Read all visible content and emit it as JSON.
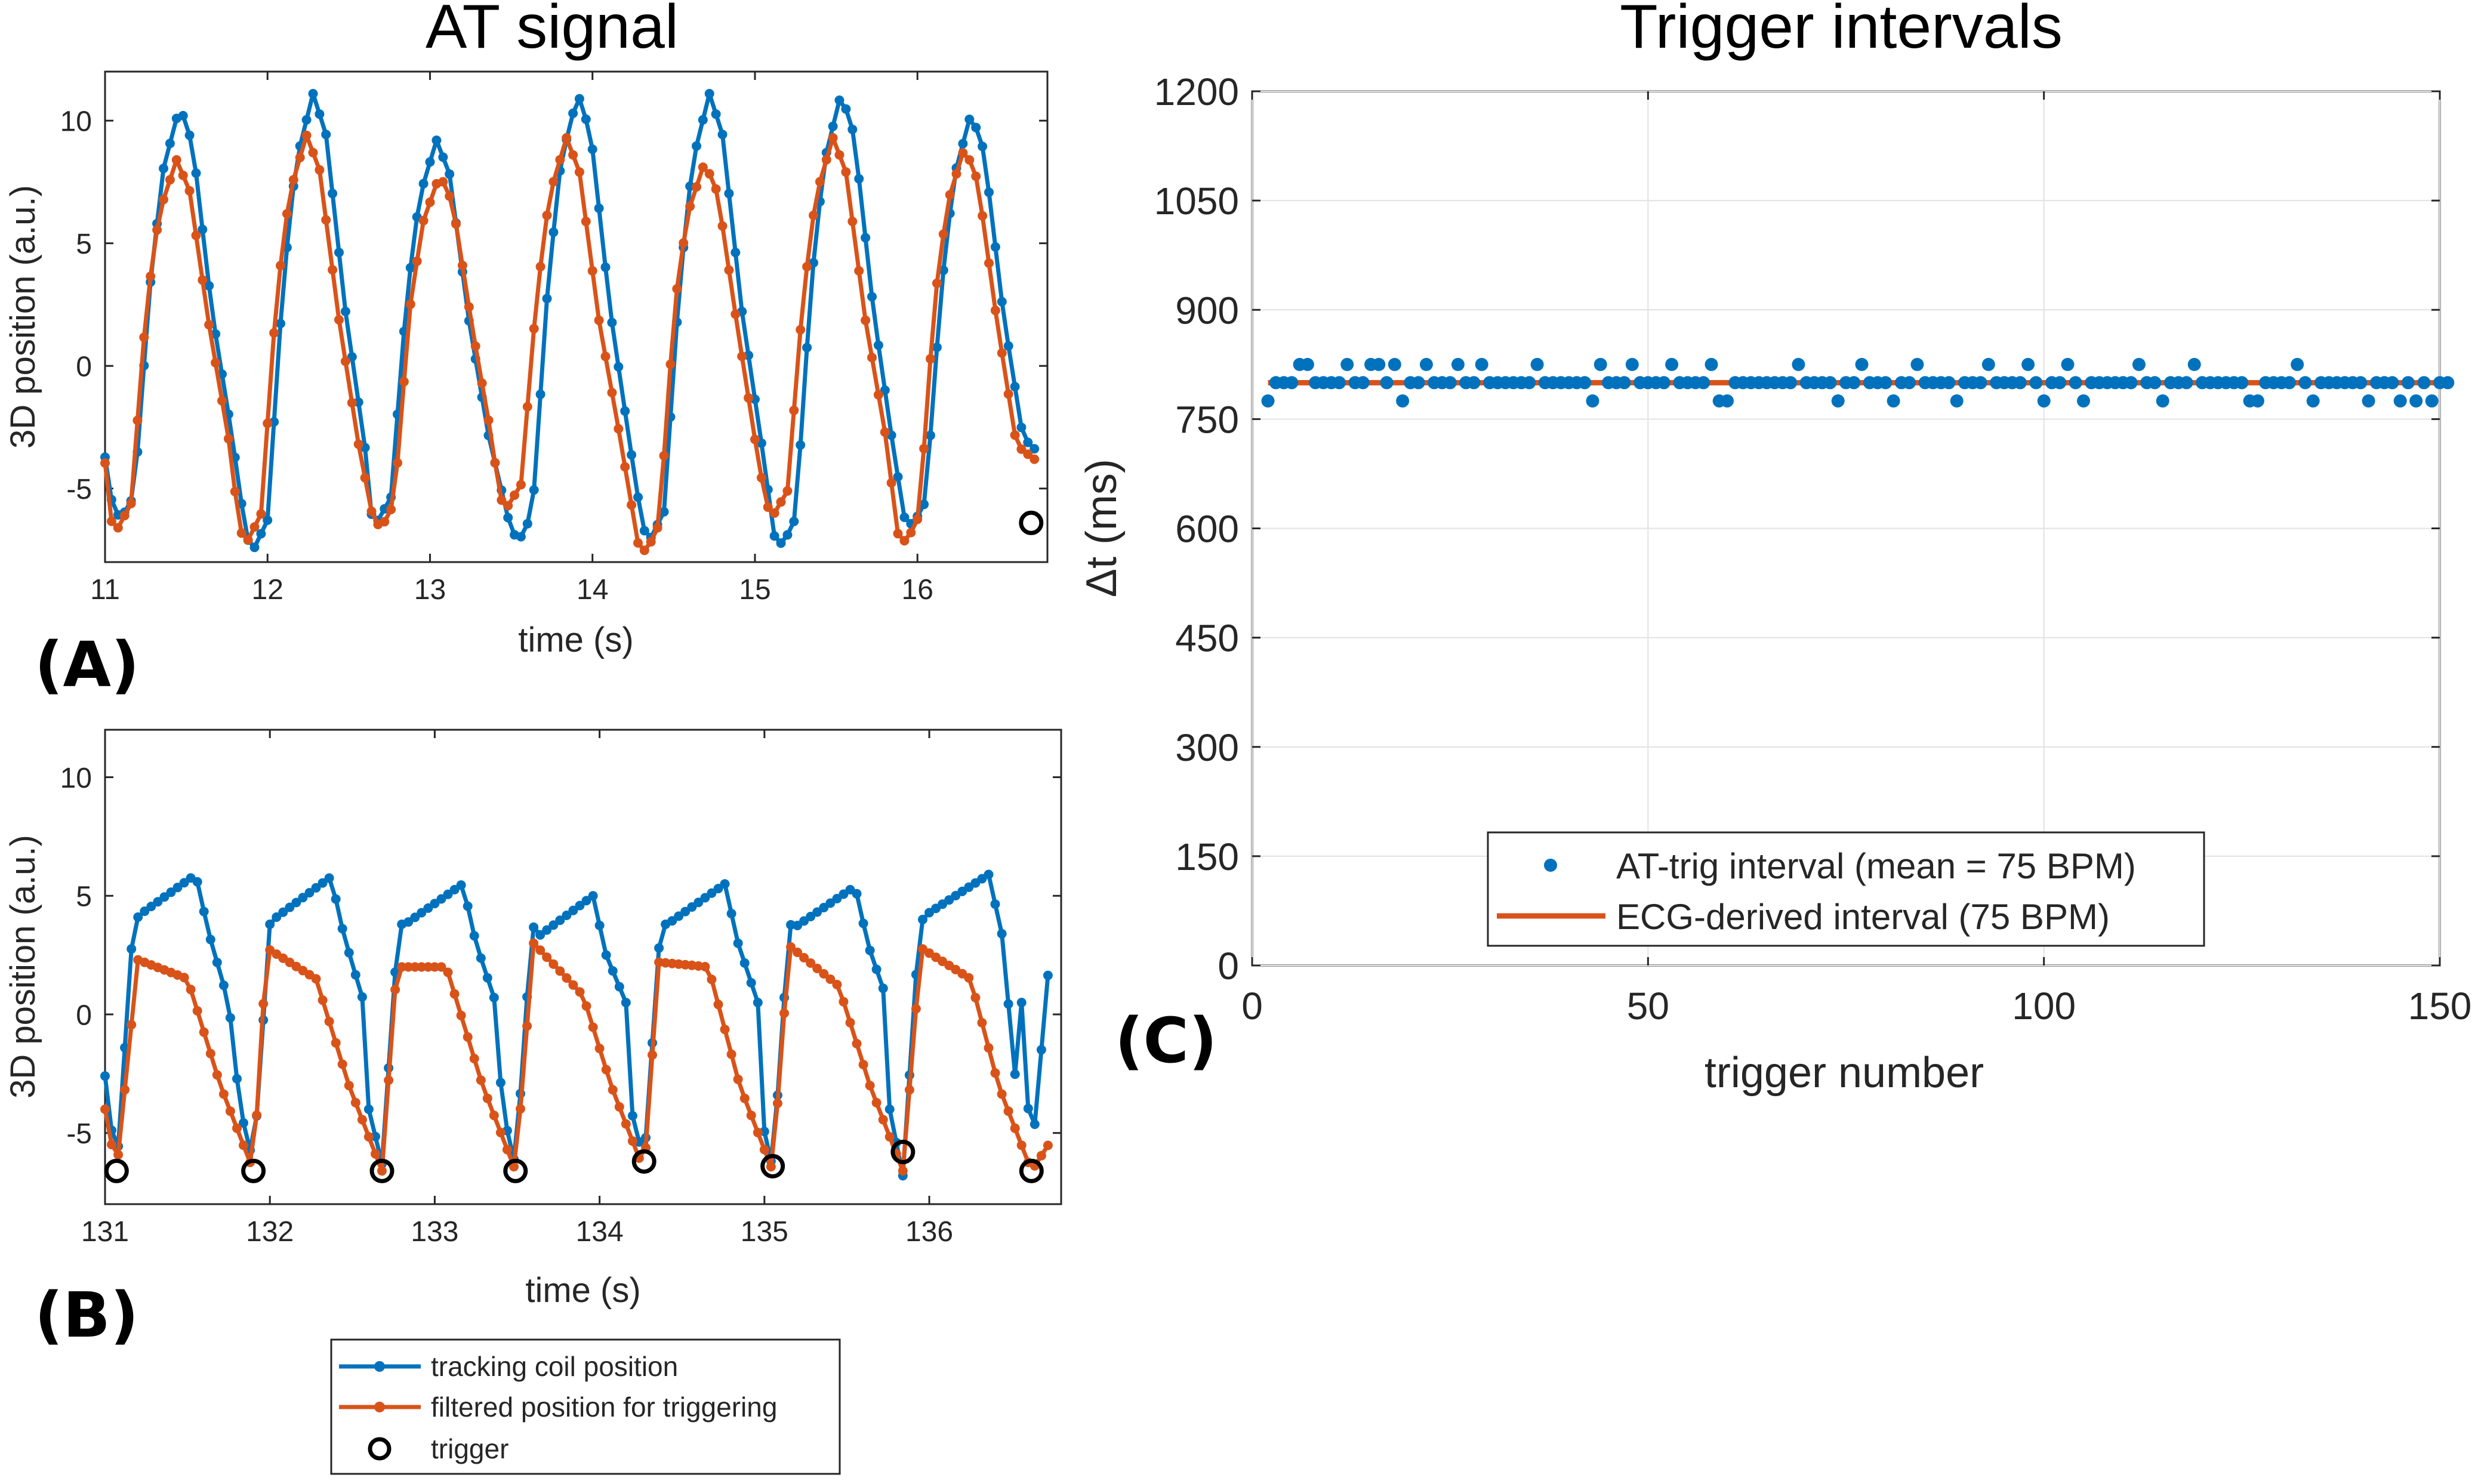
{
  "titles": {
    "left": "AT signal",
    "right": "Trigger intervals"
  },
  "panel_letters": {
    "a": "(A)",
    "b": "(B)",
    "c": "(C)"
  },
  "colors": {
    "blue": "#0072BD",
    "orange": "#D95319",
    "grid": "#e2e2e2",
    "axis": "#262626"
  },
  "legend_left": {
    "tracking": "tracking coil position",
    "filtered": "filtered position for triggering",
    "trigger": "trigger"
  },
  "chart_data": [
    {
      "id": "A",
      "type": "line",
      "xlabel": "time (s)",
      "ylabel": "3D position (a.u.)",
      "xlim": [
        11,
        16.8
      ],
      "ylim": [
        -8,
        12
      ],
      "xticks": [
        11,
        12,
        13,
        14,
        15,
        16
      ],
      "yticks": [
        -5,
        0,
        5,
        10
      ],
      "period": 0.8,
      "t_start": 11.0,
      "t_end": 16.75,
      "sample_step": 0.04,
      "series": [
        {
          "name": "tracking coil position",
          "min_times": [
            11.1,
            11.92,
            12.68,
            13.55,
            14.36,
            15.17,
            15.97
          ],
          "peak_values": [
            10.6,
            11.1,
            9.2,
            11.1,
            11.1,
            11.1,
            10.3
          ],
          "trough_values": [
            -6.2,
            -7.4,
            -6.3,
            -7.1,
            -7.0,
            -7.3,
            -6.5
          ]
        },
        {
          "name": "filtered position for triggering",
          "min_times": [
            11.08,
            11.88,
            12.7,
            13.48,
            14.33,
            15.12,
            15.93
          ],
          "peak_values": [
            8.4,
            9.4,
            7.8,
            9.3,
            8.3,
            9.3,
            8.9
          ],
          "trough_values": [
            -6.6,
            -7.1,
            -6.6,
            -5.7,
            -7.6,
            -6.0,
            -7.2
          ]
        }
      ],
      "triggers": [
        {
          "x": 16.7,
          "y": -6.4
        }
      ]
    },
    {
      "id": "B",
      "type": "line",
      "xlabel": "time (s)",
      "ylabel": "3D position (a.u.)",
      "xlim": [
        131,
        136.8
      ],
      "ylim": [
        -8,
        12
      ],
      "xticks": [
        131,
        132,
        133,
        134,
        135,
        136
      ],
      "yticks": [
        -5,
        0,
        5,
        10
      ],
      "t_start": 131.0,
      "t_end": 136.75,
      "sample_step": 0.04,
      "series": [
        {
          "name": "tracking coil position",
          "min_times": [
            131.07,
            131.9,
            132.68,
            133.49,
            134.27,
            135.05,
            135.84,
            136.62
          ],
          "peak_times": [
            131.55,
            132.37,
            133.17,
            133.96,
            134.76,
            135.55,
            136.36
          ],
          "peak_values": [
            5.9,
            5.8,
            5.5,
            5.0,
            5.5,
            5.4,
            5.9
          ],
          "trough_values": [
            -6.6,
            -6.3,
            -6.3,
            -6.4,
            -6.2,
            -6.5,
            -6.8,
            -6.2
          ],
          "end_value": 4.0
        },
        {
          "name": "filtered position for triggering",
          "min_times": [
            131.07,
            131.9,
            132.68,
            133.49,
            134.27,
            135.05,
            135.84,
            136.62
          ],
          "peak_times": [
            131.2,
            131.98,
            132.77,
            133.6,
            134.36,
            135.15,
            135.95
          ],
          "peak_values": [
            2.3,
            2.8,
            2.0,
            3.0,
            2.2,
            2.9,
            2.8
          ],
          "shoulder_values": [
            1.5,
            1.5,
            2.0,
            0.8,
            2.0,
            1.2,
            1.5
          ],
          "end_value": -5.2
        }
      ],
      "triggers": [
        {
          "x": 131.07,
          "y": -6.6
        },
        {
          "x": 131.9,
          "y": -6.6
        },
        {
          "x": 132.68,
          "y": -6.6
        },
        {
          "x": 133.49,
          "y": -6.6
        },
        {
          "x": 134.27,
          "y": -6.2
        },
        {
          "x": 135.05,
          "y": -6.4
        },
        {
          "x": 135.84,
          "y": -5.8
        },
        {
          "x": 136.62,
          "y": -6.6
        }
      ]
    },
    {
      "id": "C",
      "type": "scatter",
      "xlabel": "trigger number",
      "ylabel": "Δt (ms)",
      "xlim": [
        0,
        150
      ],
      "ylim": [
        0,
        1200
      ],
      "xticks": [
        0,
        50,
        100,
        150
      ],
      "yticks": [
        0,
        150,
        300,
        450,
        600,
        750,
        900,
        1050,
        1200
      ],
      "grid": true,
      "legend_position": "bottom-center",
      "series": [
        {
          "name": "AT-trig interval (mean = 75 BPM)",
          "x_start": 2,
          "values": [
            775,
            800,
            800,
            800,
            825,
            825,
            800,
            800,
            800,
            800,
            825,
            800,
            800,
            825,
            825,
            800,
            825,
            775,
            800,
            800,
            825,
            800,
            800,
            800,
            825,
            800,
            800,
            825,
            800,
            800,
            800,
            800,
            800,
            800,
            825,
            800,
            800,
            800,
            800,
            800,
            800,
            775,
            825,
            800,
            800,
            800,
            825,
            800,
            800,
            800,
            800,
            825,
            800,
            800,
            800,
            800,
            825,
            775,
            775,
            800,
            800,
            800,
            800,
            800,
            800,
            800,
            800,
            825,
            800,
            800,
            800,
            800,
            775,
            800,
            800,
            825,
            800,
            800,
            800,
            775,
            800,
            800,
            825,
            800,
            800,
            800,
            800,
            775,
            800,
            800,
            800,
            825,
            800,
            800,
            800,
            800,
            825,
            800,
            775,
            800,
            800,
            825,
            800,
            775,
            800,
            800,
            800,
            800,
            800,
            800,
            825,
            800,
            800,
            775,
            800,
            800,
            800,
            825,
            800,
            800,
            800,
            800,
            800,
            800,
            775,
            775,
            800,
            800,
            800,
            800,
            825,
            800,
            775,
            800,
            800,
            800,
            800,
            800,
            800,
            775,
            800,
            800,
            800,
            775,
            800,
            775,
            800,
            775,
            800,
            800
          ]
        },
        {
          "name": "ECG-derived interval (75 BPM)",
          "constant": 800,
          "x_range": [
            2,
            150
          ]
        }
      ]
    }
  ]
}
